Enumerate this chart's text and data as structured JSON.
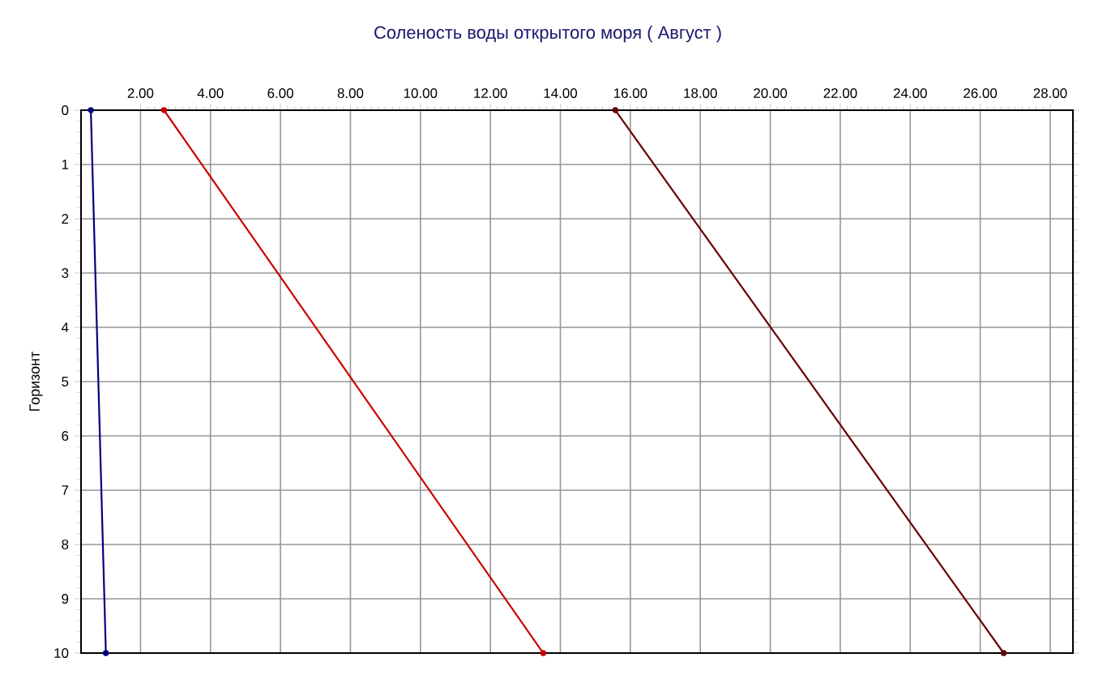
{
  "chart_data": {
    "type": "line",
    "title": "Соленость воды открытого моря    ( Август )",
    "ylabel": "Горизонт",
    "x": [
      0,
      10
    ],
    "series": [
      {
        "color": "#000080",
        "values": [
          0.58,
          1.01
        ]
      },
      {
        "color": "#cc0000",
        "values": [
          2.67,
          13.51
        ]
      },
      {
        "color": "#660000",
        "values": [
          15.57,
          26.67
        ]
      }
    ],
    "orientation": "horizontal",
    "xlim": [
      0.3,
      28.65
    ],
    "xticks": [
      {
        "value": 2,
        "label": "2.00"
      },
      {
        "value": 4,
        "label": "4.00"
      },
      {
        "value": 6,
        "label": "6.00"
      },
      {
        "value": 8,
        "label": "8.00"
      },
      {
        "value": 10,
        "label": "10.00"
      },
      {
        "value": 12,
        "label": "12.00"
      },
      {
        "value": 14,
        "label": "14.00"
      },
      {
        "value": 16,
        "label": "16.00"
      },
      {
        "value": 18,
        "label": "18.00"
      },
      {
        "value": 20,
        "label": "20.00"
      },
      {
        "value": 22,
        "label": "22.00"
      },
      {
        "value": 24,
        "label": "24.00"
      },
      {
        "value": 26,
        "label": "26.00"
      },
      {
        "value": 28,
        "label": "28.00"
      }
    ],
    "ylim": [
      10,
      0
    ],
    "yticks": [
      0,
      1,
      2,
      3,
      4,
      5,
      6,
      7,
      8,
      9,
      10
    ],
    "grid": true,
    "marker": "circle",
    "line_style": "solid"
  }
}
